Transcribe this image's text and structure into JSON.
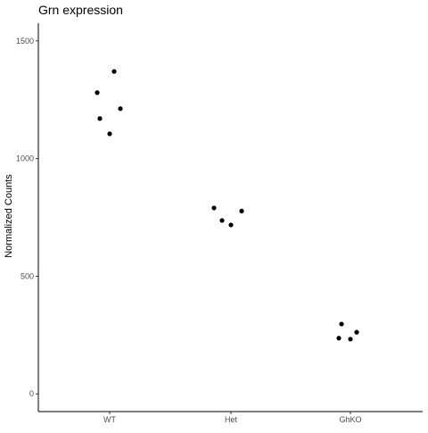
{
  "chart_data": {
    "type": "scatter",
    "title": "Grn expression",
    "xlabel": "",
    "ylabel": "Normalized Counts",
    "categories": [
      "WT",
      "Het",
      "GhKO"
    ],
    "y_ticks": [
      0,
      500,
      1000,
      1500
    ],
    "ylim": [
      -75,
      1575
    ],
    "grid": false,
    "legend": "none",
    "point_color": "#000000",
    "points": [
      {
        "category": "WT",
        "value": 1280
      },
      {
        "category": "WT",
        "value": 1170
      },
      {
        "category": "WT",
        "value": 1105
      },
      {
        "category": "WT",
        "value": 1370
      },
      {
        "category": "WT",
        "value": 1212
      },
      {
        "category": "Het",
        "value": 790
      },
      {
        "category": "Het",
        "value": 737
      },
      {
        "category": "Het",
        "value": 718
      },
      {
        "category": "Het",
        "value": 777
      },
      {
        "category": "GhKO",
        "value": 237
      },
      {
        "category": "GhKO",
        "value": 297
      },
      {
        "category": "GhKO",
        "value": 233
      },
      {
        "category": "GhKO",
        "value": 262
      }
    ]
  }
}
